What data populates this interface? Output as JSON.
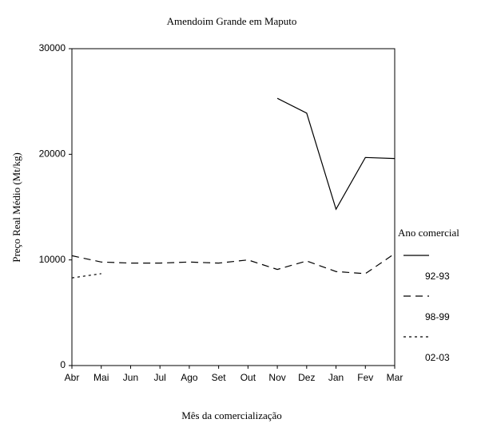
{
  "chart_data": {
    "type": "line",
    "title": "Amendoim Grande em Maputo",
    "x_label": "Mês da comercialização",
    "y_label": "Preço Real Médio (Mt/kg)",
    "categories": [
      "Abr",
      "Mai",
      "Jun",
      "Jul",
      "Ago",
      "Set",
      "Out",
      "Nov",
      "Dez",
      "Jan",
      "Fev",
      "Mar"
    ],
    "series": [
      {
        "name": "92-93",
        "color": "#000000",
        "dash": "solid",
        "values": [
          null,
          null,
          null,
          null,
          null,
          null,
          null,
          25300,
          23900,
          14800,
          19700,
          19600
        ]
      },
      {
        "name": "98-99",
        "color": "#000000",
        "dash": "dashed",
        "values": [
          10400,
          9800,
          9700,
          9700,
          9800,
          9700,
          10000,
          9100,
          9900,
          8900,
          8700,
          10600
        ]
      },
      {
        "name": "02-03",
        "color": "#000000",
        "dash": "dotted",
        "values": [
          8300,
          8700,
          null,
          null,
          null,
          null,
          null,
          null,
          null,
          null,
          null,
          null
        ]
      }
    ],
    "legend_title": "Ano comercial",
    "legend": "right",
    "ylim": [
      0,
      30000
    ],
    "yticks": [
      0,
      10000,
      20000,
      30000
    ],
    "grid": false
  }
}
